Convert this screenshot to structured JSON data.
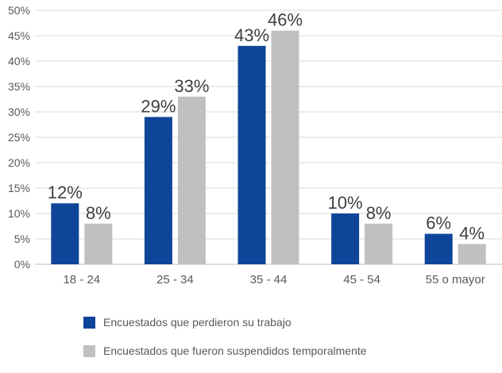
{
  "chart_data": {
    "type": "bar",
    "categories": [
      "18 - 24",
      "25 - 34",
      "35 - 44",
      "45 - 54",
      "55 o mayor"
    ],
    "series": [
      {
        "name": "Encuestados que perdieron su trabajo",
        "color": "#0f4599",
        "values": [
          12,
          29,
          43,
          10,
          6
        ],
        "labels": [
          "12%",
          "29%",
          "43%",
          "10%",
          "6%"
        ]
      },
      {
        "name": "Encuestados que fueron suspendidos temporalmente",
        "color": "#c0c0c0",
        "values": [
          8,
          33,
          46,
          8,
          4
        ],
        "labels": [
          "8%",
          "33%",
          "46%",
          "8%",
          "4%"
        ]
      }
    ],
    "y_ticks": [
      0,
      5,
      10,
      15,
      20,
      25,
      30,
      35,
      40,
      45,
      50
    ],
    "y_tick_labels": [
      "0%",
      "5%",
      "10%",
      "15%",
      "20%",
      "25%",
      "30%",
      "35%",
      "40%",
      "45%",
      "50%"
    ],
    "ylim": [
      0,
      50
    ],
    "grid": true,
    "legend_position": "bottom"
  }
}
